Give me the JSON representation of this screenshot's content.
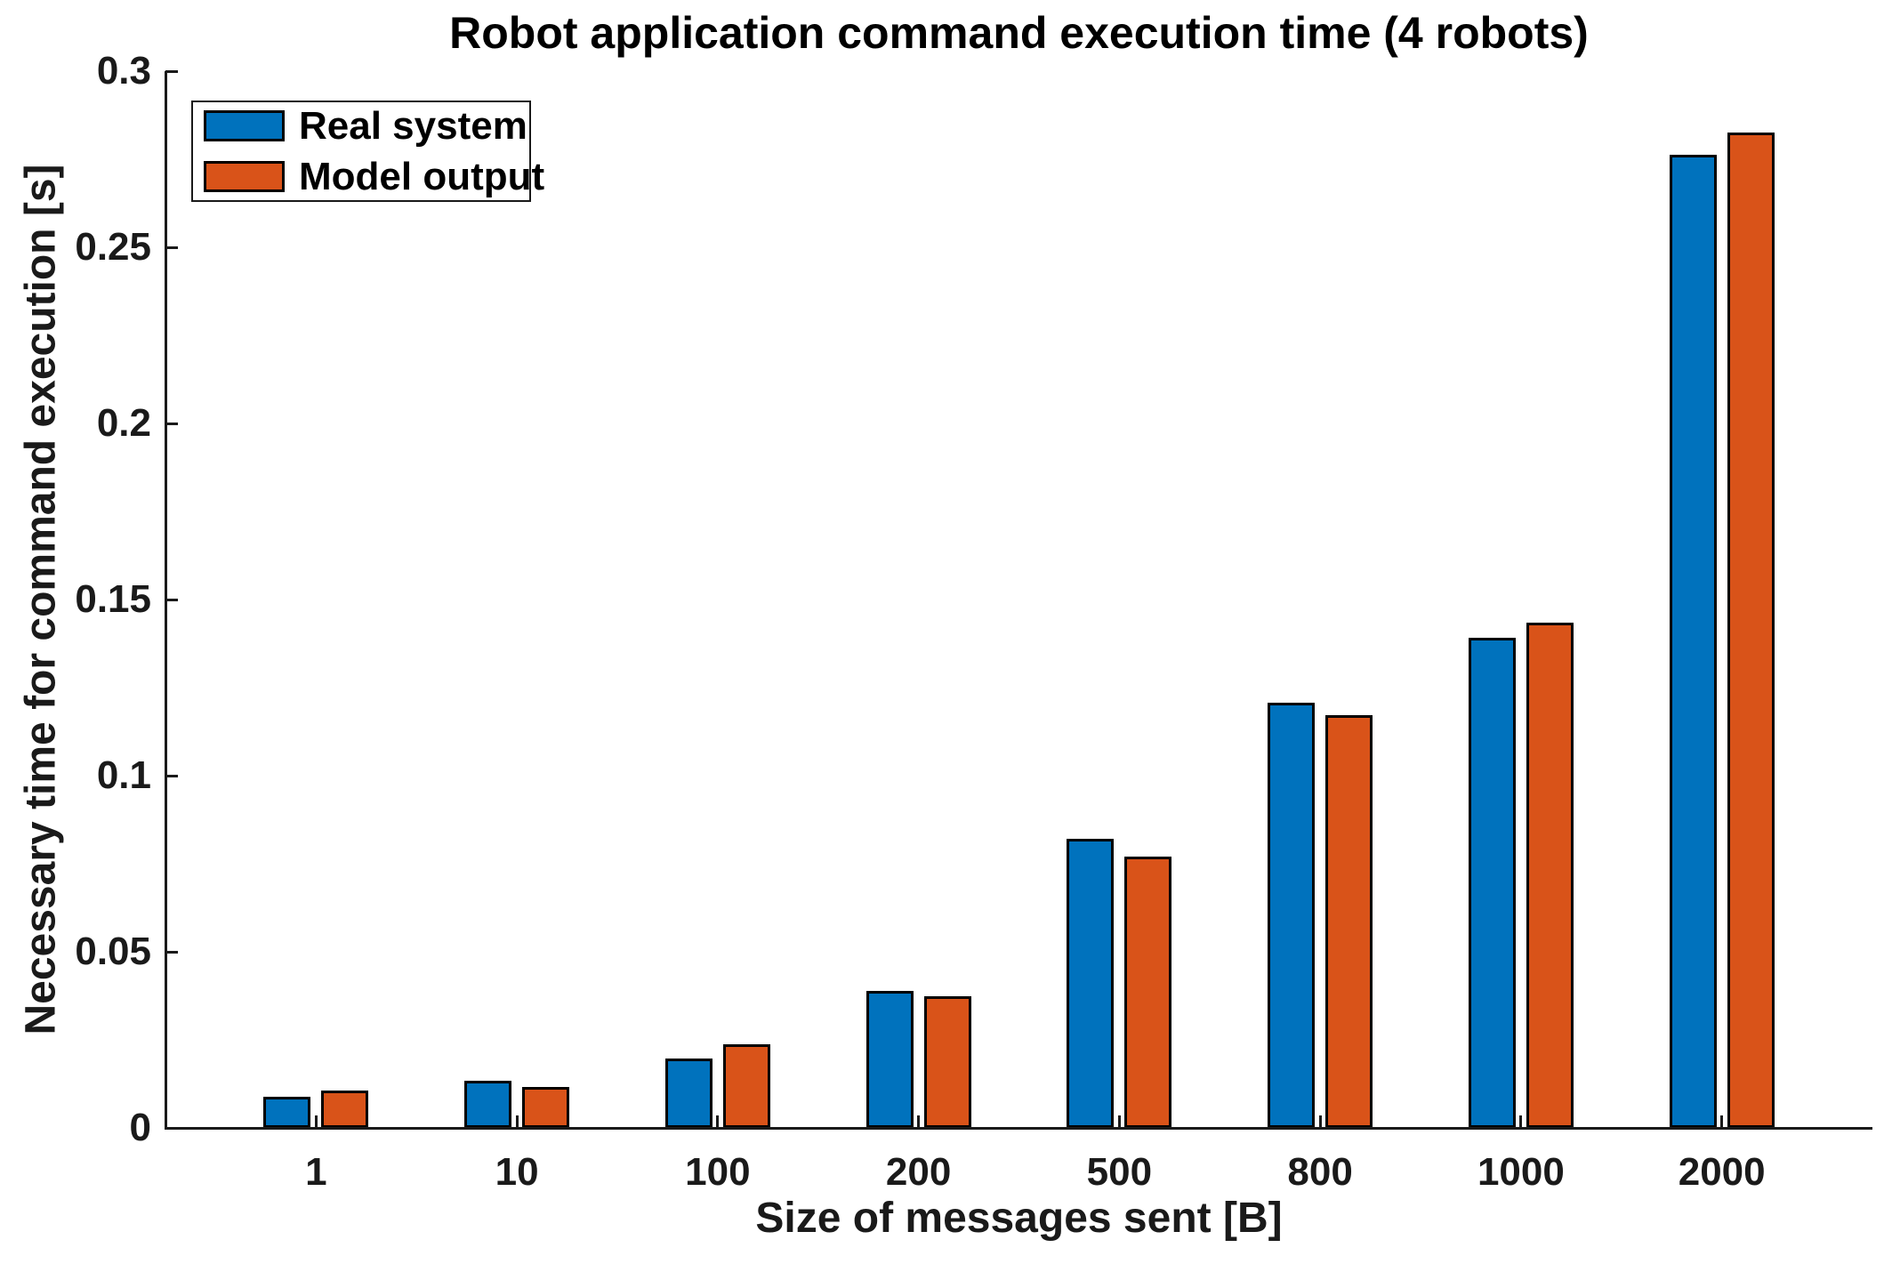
{
  "chart_data": {
    "type": "bar",
    "title": "Robot application command execution time (4 robots)",
    "xlabel": "Size of messages sent [B]",
    "ylabel": "Necessary time for command execution [s]",
    "categories": [
      "1",
      "10",
      "100",
      "200",
      "500",
      "800",
      "1000",
      "2000"
    ],
    "series": [
      {
        "name": "Real system",
        "color": "#0072BD",
        "values": [
          0.0088,
          0.0134,
          0.0197,
          0.0388,
          0.0821,
          0.1207,
          0.1392,
          0.2762
        ]
      },
      {
        "name": "Model output",
        "color": "#D95319",
        "values": [
          0.0105,
          0.0117,
          0.0237,
          0.0374,
          0.0769,
          0.1171,
          0.1435,
          0.2827
        ]
      }
    ],
    "ylim": [
      0,
      0.3
    ],
    "ytick_step": 0.05,
    "yticks": [
      "0",
      "0.05",
      "0.1",
      "0.15",
      "0.2",
      "0.25",
      "0.3"
    ],
    "legend_position": "top-left",
    "grid": false,
    "bar_edge_color": "#000000",
    "axis_color": "#1a1a1a",
    "background_color": "#ffffff"
  }
}
